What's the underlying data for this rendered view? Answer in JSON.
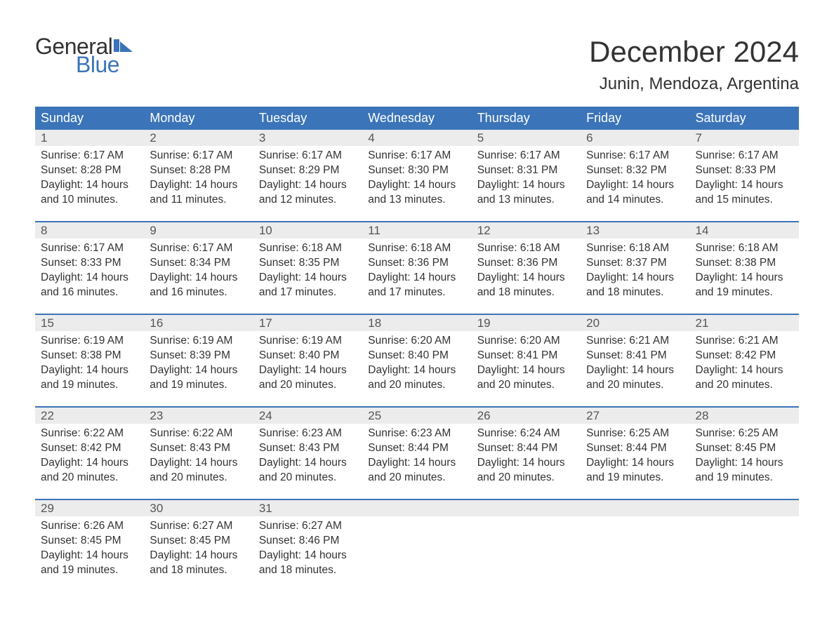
{
  "logo": {
    "text_general": "General",
    "text_blue": "Blue",
    "flag_color": "#3b74b8"
  },
  "title": "December 2024",
  "location": "Junin, Mendoza, Argentina",
  "colors": {
    "header_bg": "#3b74b8",
    "header_text": "#ffffff",
    "daynum_bg": "#ececec",
    "row_divider": "#3b74b8",
    "body_text": "#333333",
    "daynum_text": "#555555"
  },
  "day_headers": [
    "Sunday",
    "Monday",
    "Tuesday",
    "Wednesday",
    "Thursday",
    "Friday",
    "Saturday"
  ],
  "weeks": [
    [
      {
        "n": "1",
        "sunrise": "6:17 AM",
        "sunset": "8:28 PM",
        "daylight": "14 hours and 10 minutes."
      },
      {
        "n": "2",
        "sunrise": "6:17 AM",
        "sunset": "8:28 PM",
        "daylight": "14 hours and 11 minutes."
      },
      {
        "n": "3",
        "sunrise": "6:17 AM",
        "sunset": "8:29 PM",
        "daylight": "14 hours and 12 minutes."
      },
      {
        "n": "4",
        "sunrise": "6:17 AM",
        "sunset": "8:30 PM",
        "daylight": "14 hours and 13 minutes."
      },
      {
        "n": "5",
        "sunrise": "6:17 AM",
        "sunset": "8:31 PM",
        "daylight": "14 hours and 13 minutes."
      },
      {
        "n": "6",
        "sunrise": "6:17 AM",
        "sunset": "8:32 PM",
        "daylight": "14 hours and 14 minutes."
      },
      {
        "n": "7",
        "sunrise": "6:17 AM",
        "sunset": "8:33 PM",
        "daylight": "14 hours and 15 minutes."
      }
    ],
    [
      {
        "n": "8",
        "sunrise": "6:17 AM",
        "sunset": "8:33 PM",
        "daylight": "14 hours and 16 minutes."
      },
      {
        "n": "9",
        "sunrise": "6:17 AM",
        "sunset": "8:34 PM",
        "daylight": "14 hours and 16 minutes."
      },
      {
        "n": "10",
        "sunrise": "6:18 AM",
        "sunset": "8:35 PM",
        "daylight": "14 hours and 17 minutes."
      },
      {
        "n": "11",
        "sunrise": "6:18 AM",
        "sunset": "8:36 PM",
        "daylight": "14 hours and 17 minutes."
      },
      {
        "n": "12",
        "sunrise": "6:18 AM",
        "sunset": "8:36 PM",
        "daylight": "14 hours and 18 minutes."
      },
      {
        "n": "13",
        "sunrise": "6:18 AM",
        "sunset": "8:37 PM",
        "daylight": "14 hours and 18 minutes."
      },
      {
        "n": "14",
        "sunrise": "6:18 AM",
        "sunset": "8:38 PM",
        "daylight": "14 hours and 19 minutes."
      }
    ],
    [
      {
        "n": "15",
        "sunrise": "6:19 AM",
        "sunset": "8:38 PM",
        "daylight": "14 hours and 19 minutes."
      },
      {
        "n": "16",
        "sunrise": "6:19 AM",
        "sunset": "8:39 PM",
        "daylight": "14 hours and 19 minutes."
      },
      {
        "n": "17",
        "sunrise": "6:19 AM",
        "sunset": "8:40 PM",
        "daylight": "14 hours and 20 minutes."
      },
      {
        "n": "18",
        "sunrise": "6:20 AM",
        "sunset": "8:40 PM",
        "daylight": "14 hours and 20 minutes."
      },
      {
        "n": "19",
        "sunrise": "6:20 AM",
        "sunset": "8:41 PM",
        "daylight": "14 hours and 20 minutes."
      },
      {
        "n": "20",
        "sunrise": "6:21 AM",
        "sunset": "8:41 PM",
        "daylight": "14 hours and 20 minutes."
      },
      {
        "n": "21",
        "sunrise": "6:21 AM",
        "sunset": "8:42 PM",
        "daylight": "14 hours and 20 minutes."
      }
    ],
    [
      {
        "n": "22",
        "sunrise": "6:22 AM",
        "sunset": "8:42 PM",
        "daylight": "14 hours and 20 minutes."
      },
      {
        "n": "23",
        "sunrise": "6:22 AM",
        "sunset": "8:43 PM",
        "daylight": "14 hours and 20 minutes."
      },
      {
        "n": "24",
        "sunrise": "6:23 AM",
        "sunset": "8:43 PM",
        "daylight": "14 hours and 20 minutes."
      },
      {
        "n": "25",
        "sunrise": "6:23 AM",
        "sunset": "8:44 PM",
        "daylight": "14 hours and 20 minutes."
      },
      {
        "n": "26",
        "sunrise": "6:24 AM",
        "sunset": "8:44 PM",
        "daylight": "14 hours and 20 minutes."
      },
      {
        "n": "27",
        "sunrise": "6:25 AM",
        "sunset": "8:44 PM",
        "daylight": "14 hours and 19 minutes."
      },
      {
        "n": "28",
        "sunrise": "6:25 AM",
        "sunset": "8:45 PM",
        "daylight": "14 hours and 19 minutes."
      }
    ],
    [
      {
        "n": "29",
        "sunrise": "6:26 AM",
        "sunset": "8:45 PM",
        "daylight": "14 hours and 19 minutes."
      },
      {
        "n": "30",
        "sunrise": "6:27 AM",
        "sunset": "8:45 PM",
        "daylight": "14 hours and 18 minutes."
      },
      {
        "n": "31",
        "sunrise": "6:27 AM",
        "sunset": "8:46 PM",
        "daylight": "14 hours and 18 minutes."
      },
      null,
      null,
      null,
      null
    ]
  ],
  "labels": {
    "sunrise": "Sunrise:",
    "sunset": "Sunset:",
    "daylight": "Daylight:"
  }
}
